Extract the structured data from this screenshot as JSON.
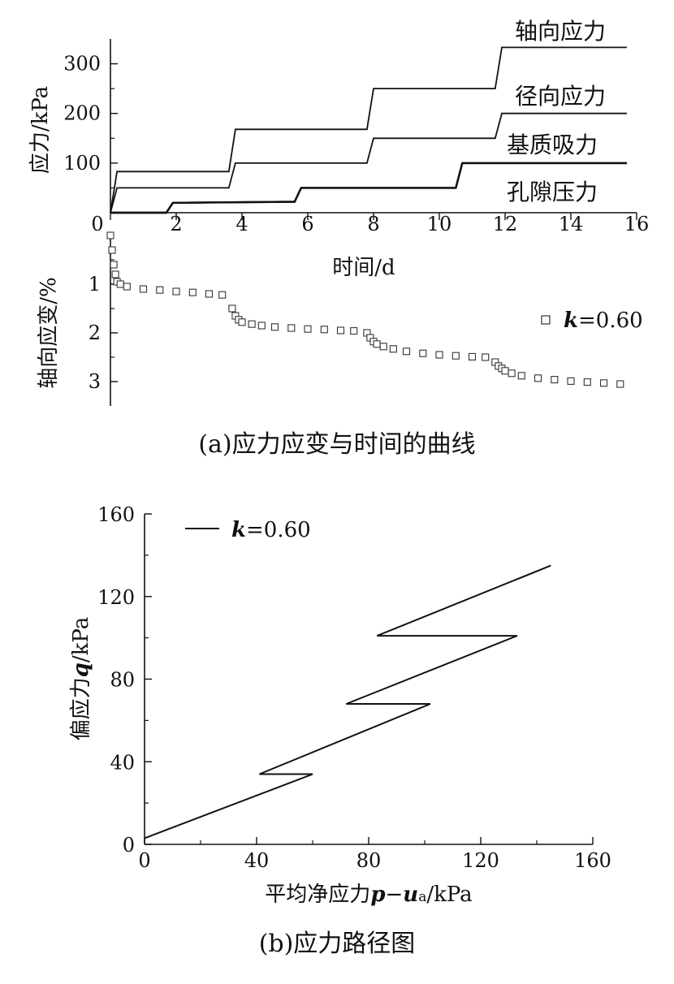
{
  "chart_data": [
    {
      "id": "a_stress",
      "type": "line",
      "ylabel": "应力/kPa",
      "xlabel": "时间/d",
      "xlim": [
        0,
        16
      ],
      "ylim": [
        0,
        350
      ],
      "xticks": [
        0,
        2,
        4,
        6,
        8,
        10,
        12,
        14,
        16
      ],
      "yticks": [
        100,
        200,
        300
      ],
      "grid": false,
      "series": [
        {
          "name": "轴向应力",
          "x": [
            0,
            0.2,
            3.6,
            3.8,
            7.8,
            8.0,
            11.7,
            11.9,
            15.7
          ],
          "y": [
            0,
            83,
            83,
            168,
            168,
            250,
            250,
            333,
            333
          ]
        },
        {
          "name": "径向应力",
          "x": [
            0,
            0.2,
            3.6,
            3.8,
            7.8,
            8.0,
            11.7,
            11.9,
            15.7
          ],
          "y": [
            0,
            50,
            50,
            100,
            100,
            150,
            150,
            200,
            200
          ]
        },
        {
          "name": "基质吸力",
          "x": [
            0,
            1.7,
            1.9,
            5.6,
            5.8,
            10.5,
            10.7,
            15.7
          ],
          "y": [
            0,
            0,
            20,
            22,
            50,
            50,
            100,
            100
          ]
        },
        {
          "name": "孔隙压力",
          "x": [
            0,
            1.7,
            1.9,
            5.6,
            5.8,
            10.5,
            10.7,
            15.7
          ],
          "y": [
            0,
            0,
            20,
            22,
            50,
            50,
            100,
            100
          ]
        }
      ]
    },
    {
      "id": "a_strain",
      "type": "scatter",
      "ylabel": "轴向应变/%",
      "ylim": [
        0,
        3.5
      ],
      "yticks": [
        1,
        2,
        3
      ],
      "series": [
        {
          "name": "k=0.60",
          "legend_italic": "k",
          "legend_rest": "=0.60",
          "x": [
            0,
            0.05,
            0.1,
            0.15,
            0.2,
            0.3,
            0.5,
            1,
            1.5,
            2,
            2.5,
            3,
            3.4,
            3.7,
            3.8,
            3.9,
            4.0,
            4.3,
            4.6,
            5,
            5.5,
            6,
            6.5,
            7,
            7.4,
            7.8,
            7.9,
            8.0,
            8.1,
            8.3,
            8.6,
            9,
            9.5,
            10,
            10.5,
            11,
            11.4,
            11.7,
            11.8,
            11.9,
            12.0,
            12.2,
            12.5,
            13,
            13.5,
            14,
            14.5,
            15,
            15.5
          ],
          "y": [
            0,
            0.3,
            0.6,
            0.8,
            0.95,
            1.0,
            1.05,
            1.1,
            1.12,
            1.15,
            1.17,
            1.2,
            1.22,
            1.5,
            1.65,
            1.73,
            1.78,
            1.82,
            1.85,
            1.88,
            1.9,
            1.92,
            1.93,
            1.95,
            1.96,
            2.0,
            2.1,
            2.18,
            2.23,
            2.28,
            2.33,
            2.38,
            2.42,
            2.45,
            2.47,
            2.49,
            2.5,
            2.6,
            2.68,
            2.73,
            2.78,
            2.83,
            2.88,
            2.93,
            2.96,
            2.99,
            3.01,
            3.03,
            3.05
          ]
        }
      ]
    },
    {
      "id": "b_path",
      "type": "line",
      "xlabel_main": "平均净应力",
      "xlabel_var1": "p",
      "xlabel_minus": "−",
      "xlabel_var2": "u",
      "xlabel_sub": "a",
      "xlabel_unit": "/kPa",
      "ylabel_main": "偏应力",
      "ylabel_var": "q",
      "ylabel_unit": "/kPa",
      "xlim": [
        0,
        160
      ],
      "ylim": [
        0,
        160
      ],
      "xticks": [
        0,
        40,
        80,
        120,
        160
      ],
      "yticks": [
        0,
        40,
        80,
        120,
        160
      ],
      "series": [
        {
          "name": "k=0.60",
          "legend_italic": "k",
          "legend_rest": "=0.60",
          "x": [
            0,
            60,
            41,
            102,
            72,
            133,
            83,
            145
          ],
          "y": [
            3,
            34,
            34,
            68,
            68,
            101,
            101,
            135
          ]
        }
      ]
    }
  ],
  "captions": {
    "a": "(a)应力应变与时间的曲线",
    "b": "(b)应力路径图"
  }
}
